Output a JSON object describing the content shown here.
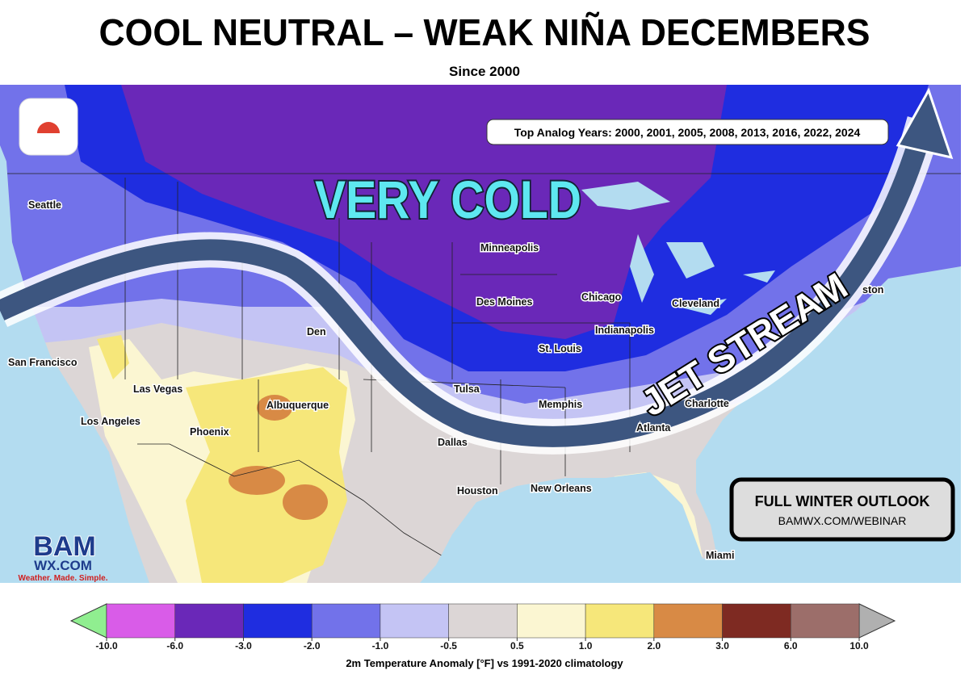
{
  "header": {
    "title": "COOL NEUTRAL – WEAK NIÑA DECEMBERS",
    "subtitle": "Since 2000"
  },
  "map": {
    "analog_years": "Top Analog Years: 2000, 2001, 2005, 2008, 2013, 2016, 2022, 2024",
    "annotations": [
      "VERY COLD",
      "JET STREAM"
    ],
    "cities": [
      "Seattle",
      "San Francisco",
      "Las Vegas",
      "Los Angeles",
      "Phoenix",
      "Albuquerque",
      "Den",
      "Minneapolis",
      "Des Moines",
      "Chicago",
      "Cleveland",
      "Indianapolis",
      "St. Louis",
      "Tulsa",
      "Memphis",
      "Dallas",
      "Atlanta",
      "Charlotte",
      "Houston",
      "New Orleans",
      "Miami",
      "ston"
    ]
  },
  "promo": {
    "title": "FULL WINTER OUTLOOK",
    "url": "BAMWX.COM/WEBINAR"
  },
  "logo": {
    "name": "BAM",
    "domain": "WX.COM",
    "tagline": "Weather. Made. Simple."
  },
  "colorbar": {
    "label": "2m Temperature Anomaly [°F] vs 1991-2020 climatology",
    "ticks": [
      {
        "value": -10,
        "label": "-10.0"
      },
      {
        "value": -6,
        "label": "-6.0"
      },
      {
        "value": -3,
        "label": "-3.0"
      },
      {
        "value": -2,
        "label": "-2.0"
      },
      {
        "value": -1,
        "label": "-1.0"
      },
      -0.5,
      0.5,
      {
        "value": 1,
        "label": "1.0"
      },
      {
        "value": 2,
        "label": "2.0"
      },
      {
        "value": 3,
        "label": "3.0"
      },
      {
        "value": 6,
        "label": "6.0"
      },
      {
        "value": 10,
        "label": "10.0"
      }
    ],
    "colors": [
      "#d95ce8",
      "#6a28b8",
      "#1f2de0",
      "#7272ea",
      "#c4c4f4",
      "#dcd6d6",
      "#fbf6d2",
      "#f6e77a",
      "#d88a45",
      "#7e2a22",
      "#9c6e6a"
    ],
    "extend_colors": [
      "#90ee90",
      "#b0b0b0"
    ]
  }
}
